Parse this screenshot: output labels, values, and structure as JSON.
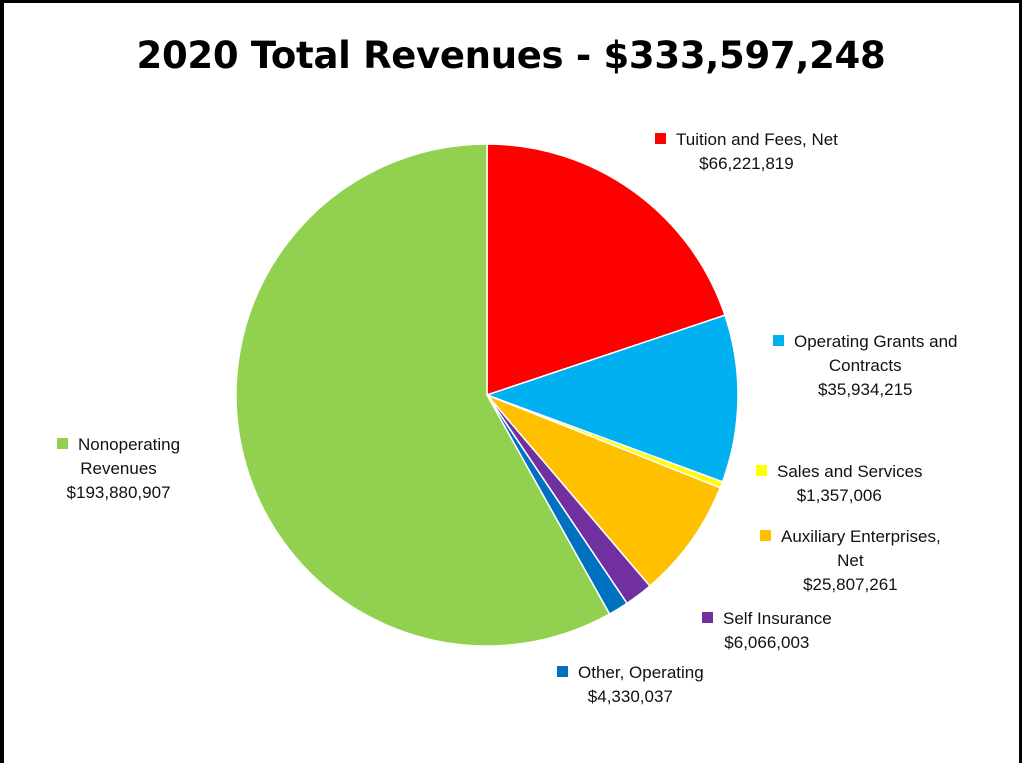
{
  "chart_data": {
    "type": "pie",
    "title": "2020 Total Revenues - $333,597,248",
    "legend": "labels beside slices",
    "slices": [
      {
        "lines": [
          "Tuition and Fees, Net"
        ],
        "value": 66221819,
        "value_label": "$66,221,819",
        "color": "#FF0000"
      },
      {
        "lines": [
          "Operating Grants and",
          "Contracts"
        ],
        "value": 35934215,
        "value_label": "$35,934,215",
        "color": "#00B0F0"
      },
      {
        "lines": [
          "Sales and Services"
        ],
        "value": 1357006,
        "value_label": "$1,357,006",
        "color": "#FFFF00"
      },
      {
        "lines": [
          "Auxiliary Enterprises,",
          "Net"
        ],
        "value": 25807261,
        "value_label": "$25,807,261",
        "color": "#FFC000"
      },
      {
        "lines": [
          "Self Insurance"
        ],
        "value": 6066003,
        "value_label": "$6,066,003",
        "color": "#7030A0"
      },
      {
        "lines": [
          "Other, Operating"
        ],
        "value": 4330037,
        "value_label": "$4,330,037",
        "color": "#0070C0"
      },
      {
        "lines": [
          "Nonoperating",
          "Revenues"
        ],
        "value": 193880907,
        "value_label": "$193,880,907",
        "color": "#92D050"
      }
    ]
  }
}
